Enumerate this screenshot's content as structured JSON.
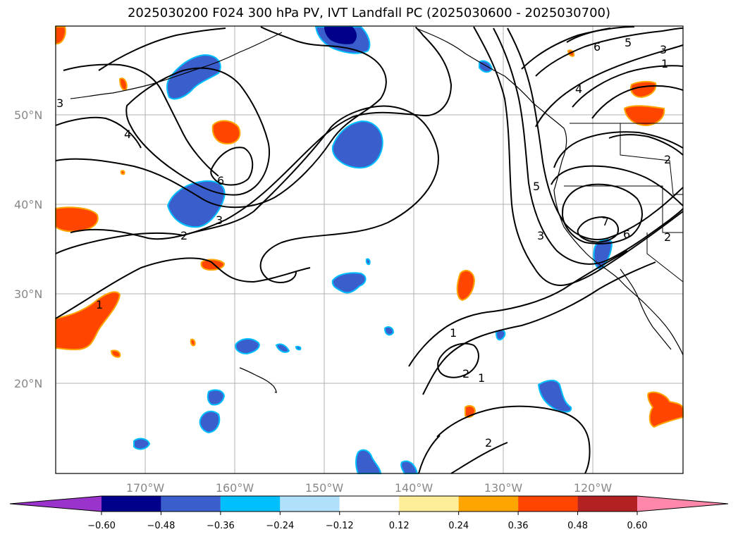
{
  "title": "2025030200 F024 300 hPa PV, IVT Landfall PC (2025030600 - 2025030700)",
  "lat_labels": [
    "50°N",
    "40°N",
    "30°N",
    "20°N"
  ],
  "lon_labels": [
    "170°W",
    "160°W",
    "150°W",
    "140°W",
    "130°W",
    "120°W"
  ],
  "contour_labels": [
    "1",
    "2",
    "3",
    "4",
    "5",
    "6",
    "7"
  ],
  "colorbar": {
    "ticks": [
      "-0.60",
      "-0.48",
      "-0.36",
      "-0.24",
      "-0.12",
      "0.12",
      "0.24",
      "0.36",
      "0.48",
      "0.60"
    ],
    "colors": [
      "#9933cc",
      "#00008b",
      "#3a5fcd",
      "#00bfff",
      "#b0e0fa",
      "#ffffff",
      "#ffee99",
      "#ffa500",
      "#ff4500",
      "#b22222",
      "#ff88aa"
    ]
  },
  "colors": {
    "pos_fill": "#ff4500",
    "pos_edge": "#ffa500",
    "neg_fill": "#3a5fcd",
    "neg_edge": "#00bfff",
    "deep_neg": "#00008b",
    "grid": "#b0b0b0",
    "contour": "#000000"
  }
}
